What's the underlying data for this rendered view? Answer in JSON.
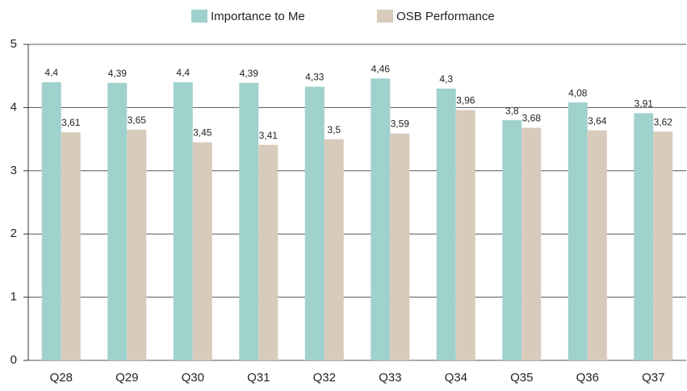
{
  "chart_data": {
    "type": "bar",
    "categories": [
      "Q28",
      "Q29",
      "Q30",
      "Q31",
      "Q32",
      "Q33",
      "Q34",
      "Q35",
      "Q36",
      "Q37"
    ],
    "series": [
      {
        "name": "Importance to Me",
        "color": "#9fd1cd",
        "values": [
          4.4,
          4.39,
          4.4,
          4.39,
          4.33,
          4.46,
          4.3,
          3.8,
          4.08,
          3.91
        ],
        "value_labels": [
          "4,4",
          "4,39",
          "4,4",
          "4,39",
          "4,33",
          "4,46",
          "4,3",
          "3,8",
          "4,08",
          "3,91"
        ]
      },
      {
        "name": "OSB Performance",
        "color": "#d9cbbc",
        "values": [
          3.61,
          3.65,
          3.45,
          3.41,
          3.5,
          3.59,
          3.96,
          3.68,
          3.64,
          3.62
        ],
        "value_labels": [
          "3,61",
          "3,65",
          "3,45",
          "3,41",
          "3,5",
          "3,59",
          "3,96",
          "3,68",
          "3,64",
          "3,62"
        ]
      }
    ],
    "ylim": [
      0,
      5
    ],
    "yticks": [
      0,
      1,
      2,
      3,
      4,
      5
    ],
    "grid": true,
    "legend": "top"
  }
}
